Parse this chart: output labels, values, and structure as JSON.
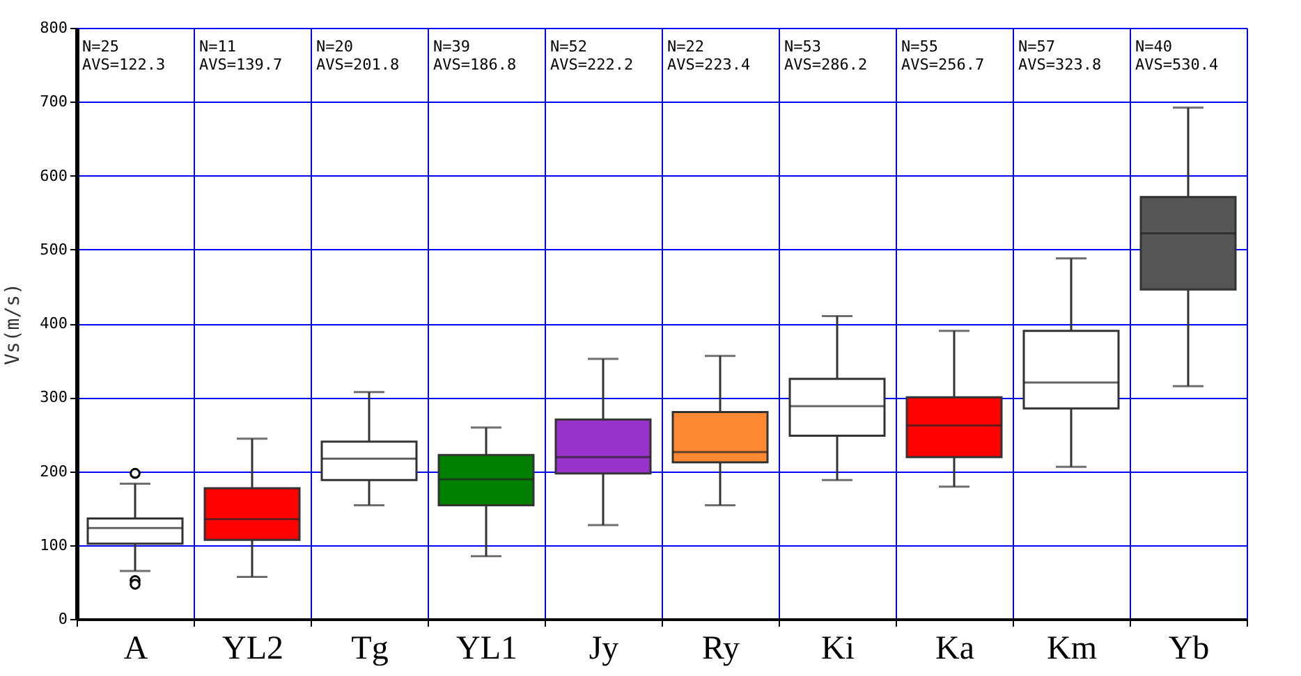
{
  "chart_data": {
    "type": "box",
    "ylabel": "Vs(m/s)",
    "categories": [
      "A",
      "YL2",
      "Tg",
      "YL1",
      "Jy",
      "Ry",
      "Ki",
      "Ka",
      "Km",
      "Yb"
    ],
    "boxes": [
      {
        "low": 65,
        "q1": 102,
        "median": 123,
        "q3": 136,
        "high": 183,
        "outliers": [
          197,
          52,
          47
        ]
      },
      {
        "low": 57,
        "q1": 107,
        "median": 135,
        "q3": 177,
        "high": 244
      },
      {
        "low": 154,
        "q1": 188,
        "median": 217,
        "q3": 240,
        "high": 307
      },
      {
        "low": 85,
        "q1": 154,
        "median": 189,
        "q3": 222,
        "high": 259
      },
      {
        "low": 127,
        "q1": 197,
        "median": 219,
        "q3": 270,
        "high": 352
      },
      {
        "low": 154,
        "q1": 212,
        "median": 226,
        "q3": 280,
        "high": 356
      },
      {
        "low": 188,
        "q1": 248,
        "median": 288,
        "q3": 325,
        "high": 410
      },
      {
        "low": 179,
        "q1": 219,
        "median": 262,
        "q3": 300,
        "high": 390
      },
      {
        "low": 206,
        "q1": 285,
        "median": 320,
        "q3": 390,
        "high": 488
      },
      {
        "low": 315,
        "q1": 446,
        "median": 522,
        "q3": 571,
        "high": 692
      }
    ],
    "colors": [
      "#ffffff",
      "#ff0000",
      "#ffffff",
      "#008000",
      "#9933cc",
      "#ff8833",
      "#ffffff",
      "#ff0000",
      "#ffffff",
      "#555555"
    ],
    "ylim": [
      0,
      800
    ],
    "yticks": [
      0,
      100,
      200,
      300,
      400,
      500,
      600,
      700,
      800
    ],
    "grid": true,
    "annotations": [
      "N=25\nAVS=122.3",
      "N=11\nAVS=139.7",
      "N=20\nAVS=201.8",
      "N=39\nAVS=186.8",
      "N=52\nAVS=222.2",
      "N=22\nAVS=223.4",
      "N=53\nAVS=286.2",
      "N=55\nAVS=256.7",
      "N=57\nAVS=323.8",
      "N=40\nAVS=530.4"
    ]
  }
}
